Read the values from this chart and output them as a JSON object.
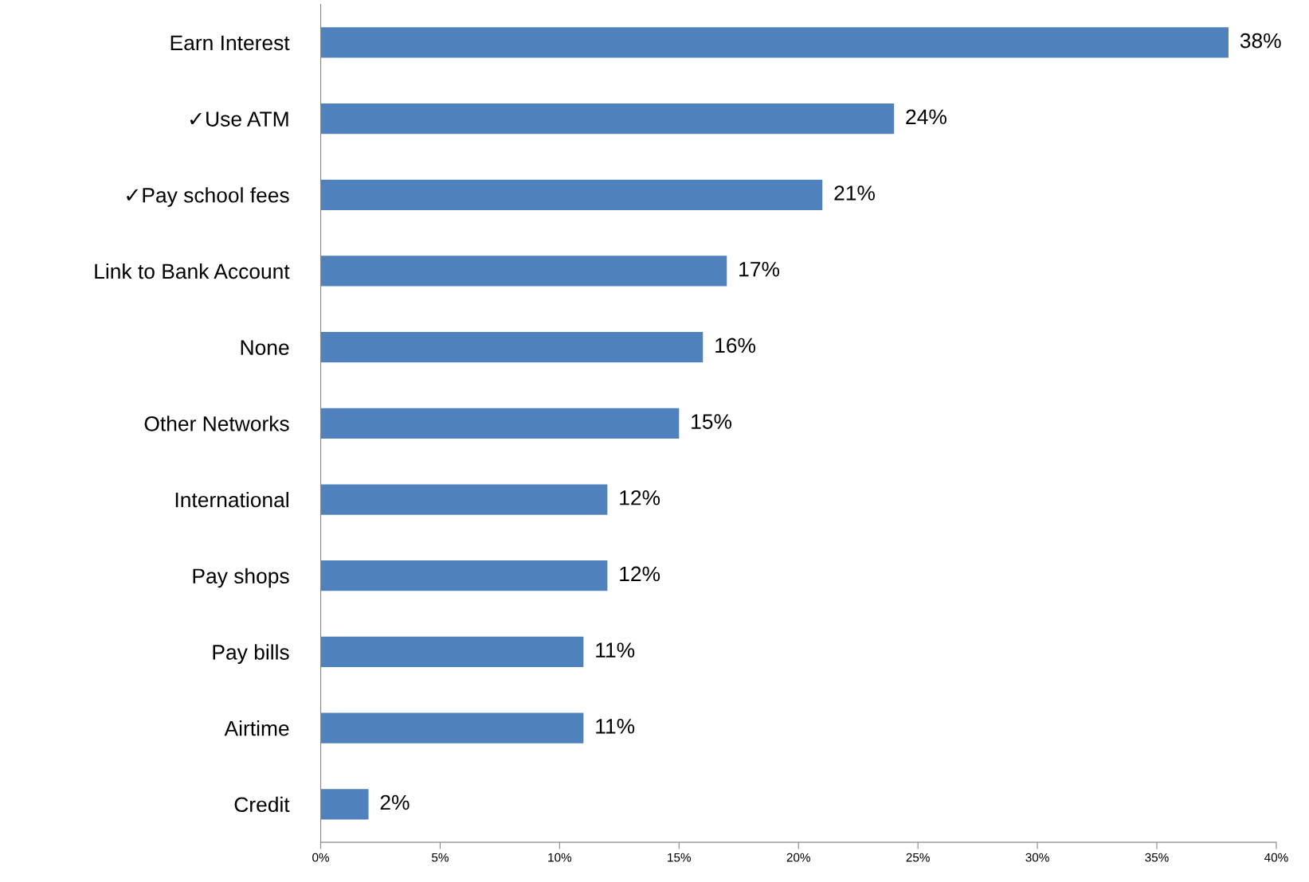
{
  "chart_data": {
    "type": "bar",
    "orientation": "horizontal",
    "categories": [
      "Earn Interest",
      "✓Use ATM",
      "✓Pay school fees",
      "Link to Bank Account",
      "None",
      "Other Networks",
      "International",
      "Pay shops",
      "Pay bills",
      "Airtime",
      "Credit"
    ],
    "values": [
      38,
      24,
      21,
      17,
      16,
      15,
      12,
      12,
      11,
      11,
      2
    ],
    "value_labels": [
      "38%",
      "24%",
      "21%",
      "17%",
      "16%",
      "15%",
      "12%",
      "12%",
      "11%",
      "11%",
      "2%"
    ],
    "color": "#4f81bd",
    "xlim": [
      0,
      40
    ],
    "xticks": [
      {
        "value": 0,
        "label": "0%"
      },
      {
        "value": 5,
        "label": "5%"
      },
      {
        "value": 10,
        "label": "10%"
      },
      {
        "value": 15,
        "label": "15%"
      },
      {
        "value": 20,
        "label": "20%"
      },
      {
        "value": 25,
        "label": "25%"
      },
      {
        "value": 30,
        "label": "30%"
      },
      {
        "value": 35,
        "label": "35%"
      },
      {
        "value": 40,
        "label": "40%"
      }
    ],
    "grid": false,
    "legend": false
  }
}
